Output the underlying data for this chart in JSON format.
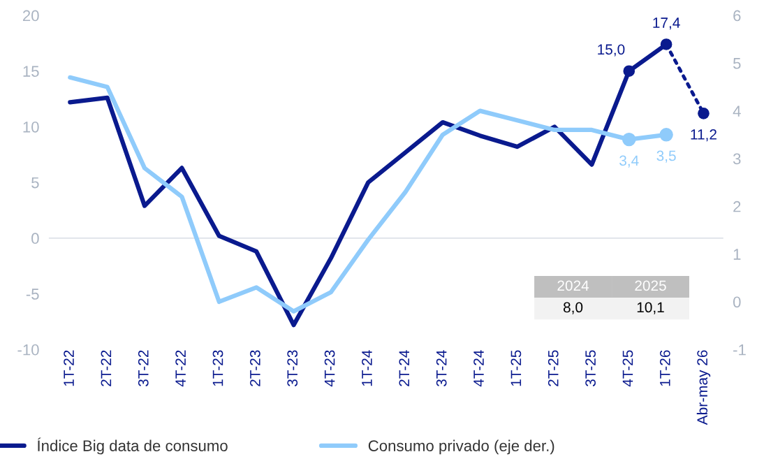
{
  "chart_data": {
    "type": "line",
    "categories": [
      "1T-22",
      "2T-22",
      "3T-22",
      "4T-22",
      "1T-23",
      "2T-23",
      "3T-23",
      "4T-23",
      "1T-24",
      "2T-24",
      "3T-24",
      "4T-24",
      "1T-25",
      "2T-25",
      "3T-25",
      "4T-25",
      "1T-26",
      "Abr-may 26"
    ],
    "series": [
      {
        "name": "Índice Big data de consumo",
        "color": "#0a1a8e",
        "line_style": "solid",
        "values": [
          12.2,
          12.6,
          2.9,
          6.3,
          0.2,
          -1.2,
          -7.8,
          -1.8,
          5.0,
          7.7,
          10.4,
          9.2,
          8.2,
          10.0,
          6.6,
          15.0,
          17.4,
          null
        ]
      },
      {
        "name": "Consumo privado (eje der.)",
        "color": "#8fcbfb",
        "axis": "y2",
        "line_style": "solid",
        "values": [
          4.7,
          4.5,
          2.8,
          2.2,
          0.0,
          0.3,
          -0.2,
          0.2,
          1.3,
          2.3,
          3.5,
          4.0,
          3.8,
          3.6,
          3.6,
          3.4,
          3.5,
          null
        ]
      },
      {
        "color": "#0a1a8e",
        "line_style": "dotted",
        "values": [
          null,
          null,
          null,
          null,
          null,
          null,
          null,
          null,
          null,
          null,
          null,
          null,
          null,
          null,
          null,
          null,
          17.4,
          11.2
        ]
      },
      {
        "type": "scatter",
        "color": "#0a1a8e",
        "marker": "circle",
        "values": [
          null,
          null,
          null,
          null,
          null,
          null,
          null,
          null,
          null,
          null,
          null,
          null,
          null,
          null,
          null,
          15.0,
          17.4,
          11.2
        ],
        "value_labels": [
          null,
          null,
          null,
          null,
          null,
          null,
          null,
          null,
          null,
          null,
          null,
          null,
          null,
          null,
          null,
          "15,0",
          "17,4",
          "11,2"
        ]
      },
      {
        "type": "scatter",
        "color": "#8fcbfb",
        "axis": "y2",
        "marker": "circle",
        "values": [
          null,
          null,
          null,
          null,
          null,
          null,
          null,
          null,
          null,
          null,
          null,
          null,
          null,
          null,
          null,
          3.4,
          3.5,
          null
        ],
        "value_labels": [
          null,
          null,
          null,
          null,
          null,
          null,
          null,
          null,
          null,
          null,
          null,
          null,
          null,
          null,
          null,
          "3,4",
          "3,5",
          null
        ]
      }
    ],
    "ylim": [
      -10,
      20
    ],
    "yticks": [
      -10,
      -5,
      0,
      5,
      10,
      15,
      20
    ],
    "y2lim": [
      -1,
      6
    ],
    "y2ticks": [
      -1,
      0,
      1,
      2,
      3,
      4,
      5,
      6
    ],
    "legend": "bottom",
    "annotations": [
      "2024",
      "2025",
      "8,0",
      "10,1"
    ]
  }
}
